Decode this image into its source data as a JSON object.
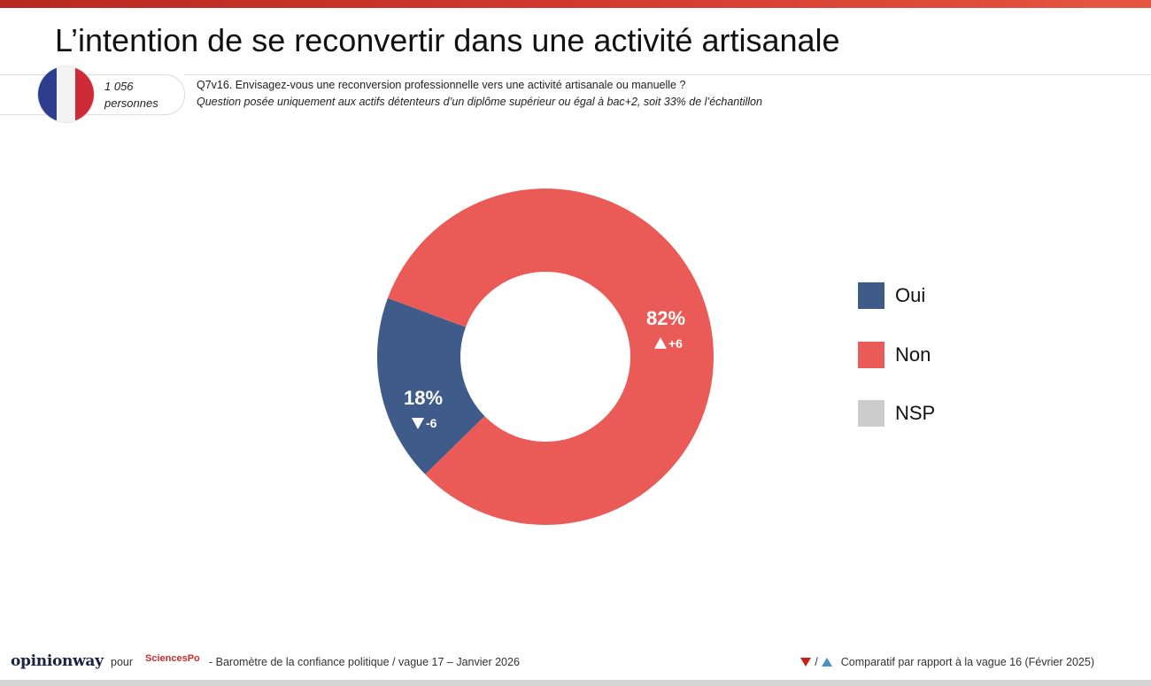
{
  "title": "L’intention de se reconvertir dans une activité artisanale",
  "sample": {
    "count": "1 056",
    "unit": "personnes"
  },
  "question": "Q7v16. Envisagez-vous une reconversion professionnelle vers une activité artisanale ou manuelle ?",
  "note": "Question posée uniquement aux actifs détenteurs d’un diplôme supérieur ou égal à bac+2, soit 33% de l’échantillon",
  "flag": {
    "colors": [
      "#2d3e8f",
      "#f3f3f3",
      "#cf2a37"
    ]
  },
  "chart_data": {
    "type": "pie",
    "variant": "donut",
    "categories": [
      "Oui",
      "Non",
      "NSP"
    ],
    "values": [
      18,
      82,
      0
    ],
    "labels": [
      "18%",
      "82%",
      ""
    ],
    "changes": [
      {
        "category": "Oui",
        "direction": "down",
        "text": "-6"
      },
      {
        "category": "Non",
        "direction": "up",
        "text": "+6"
      }
    ],
    "colors": [
      "#3f5b8a",
      "#ea5b57",
      "#cccccc"
    ],
    "legend_position": "right"
  },
  "footer": {
    "brand": "opinionway",
    "pour": "pour",
    "partner": "SciencesPo",
    "text": "- Baromètre de la confiance politique / vague 17 – Janvier 2026",
    "compare_sep": "/",
    "compare_text": "Comparatif par rapport à la vague 16 (Février 2025)"
  }
}
